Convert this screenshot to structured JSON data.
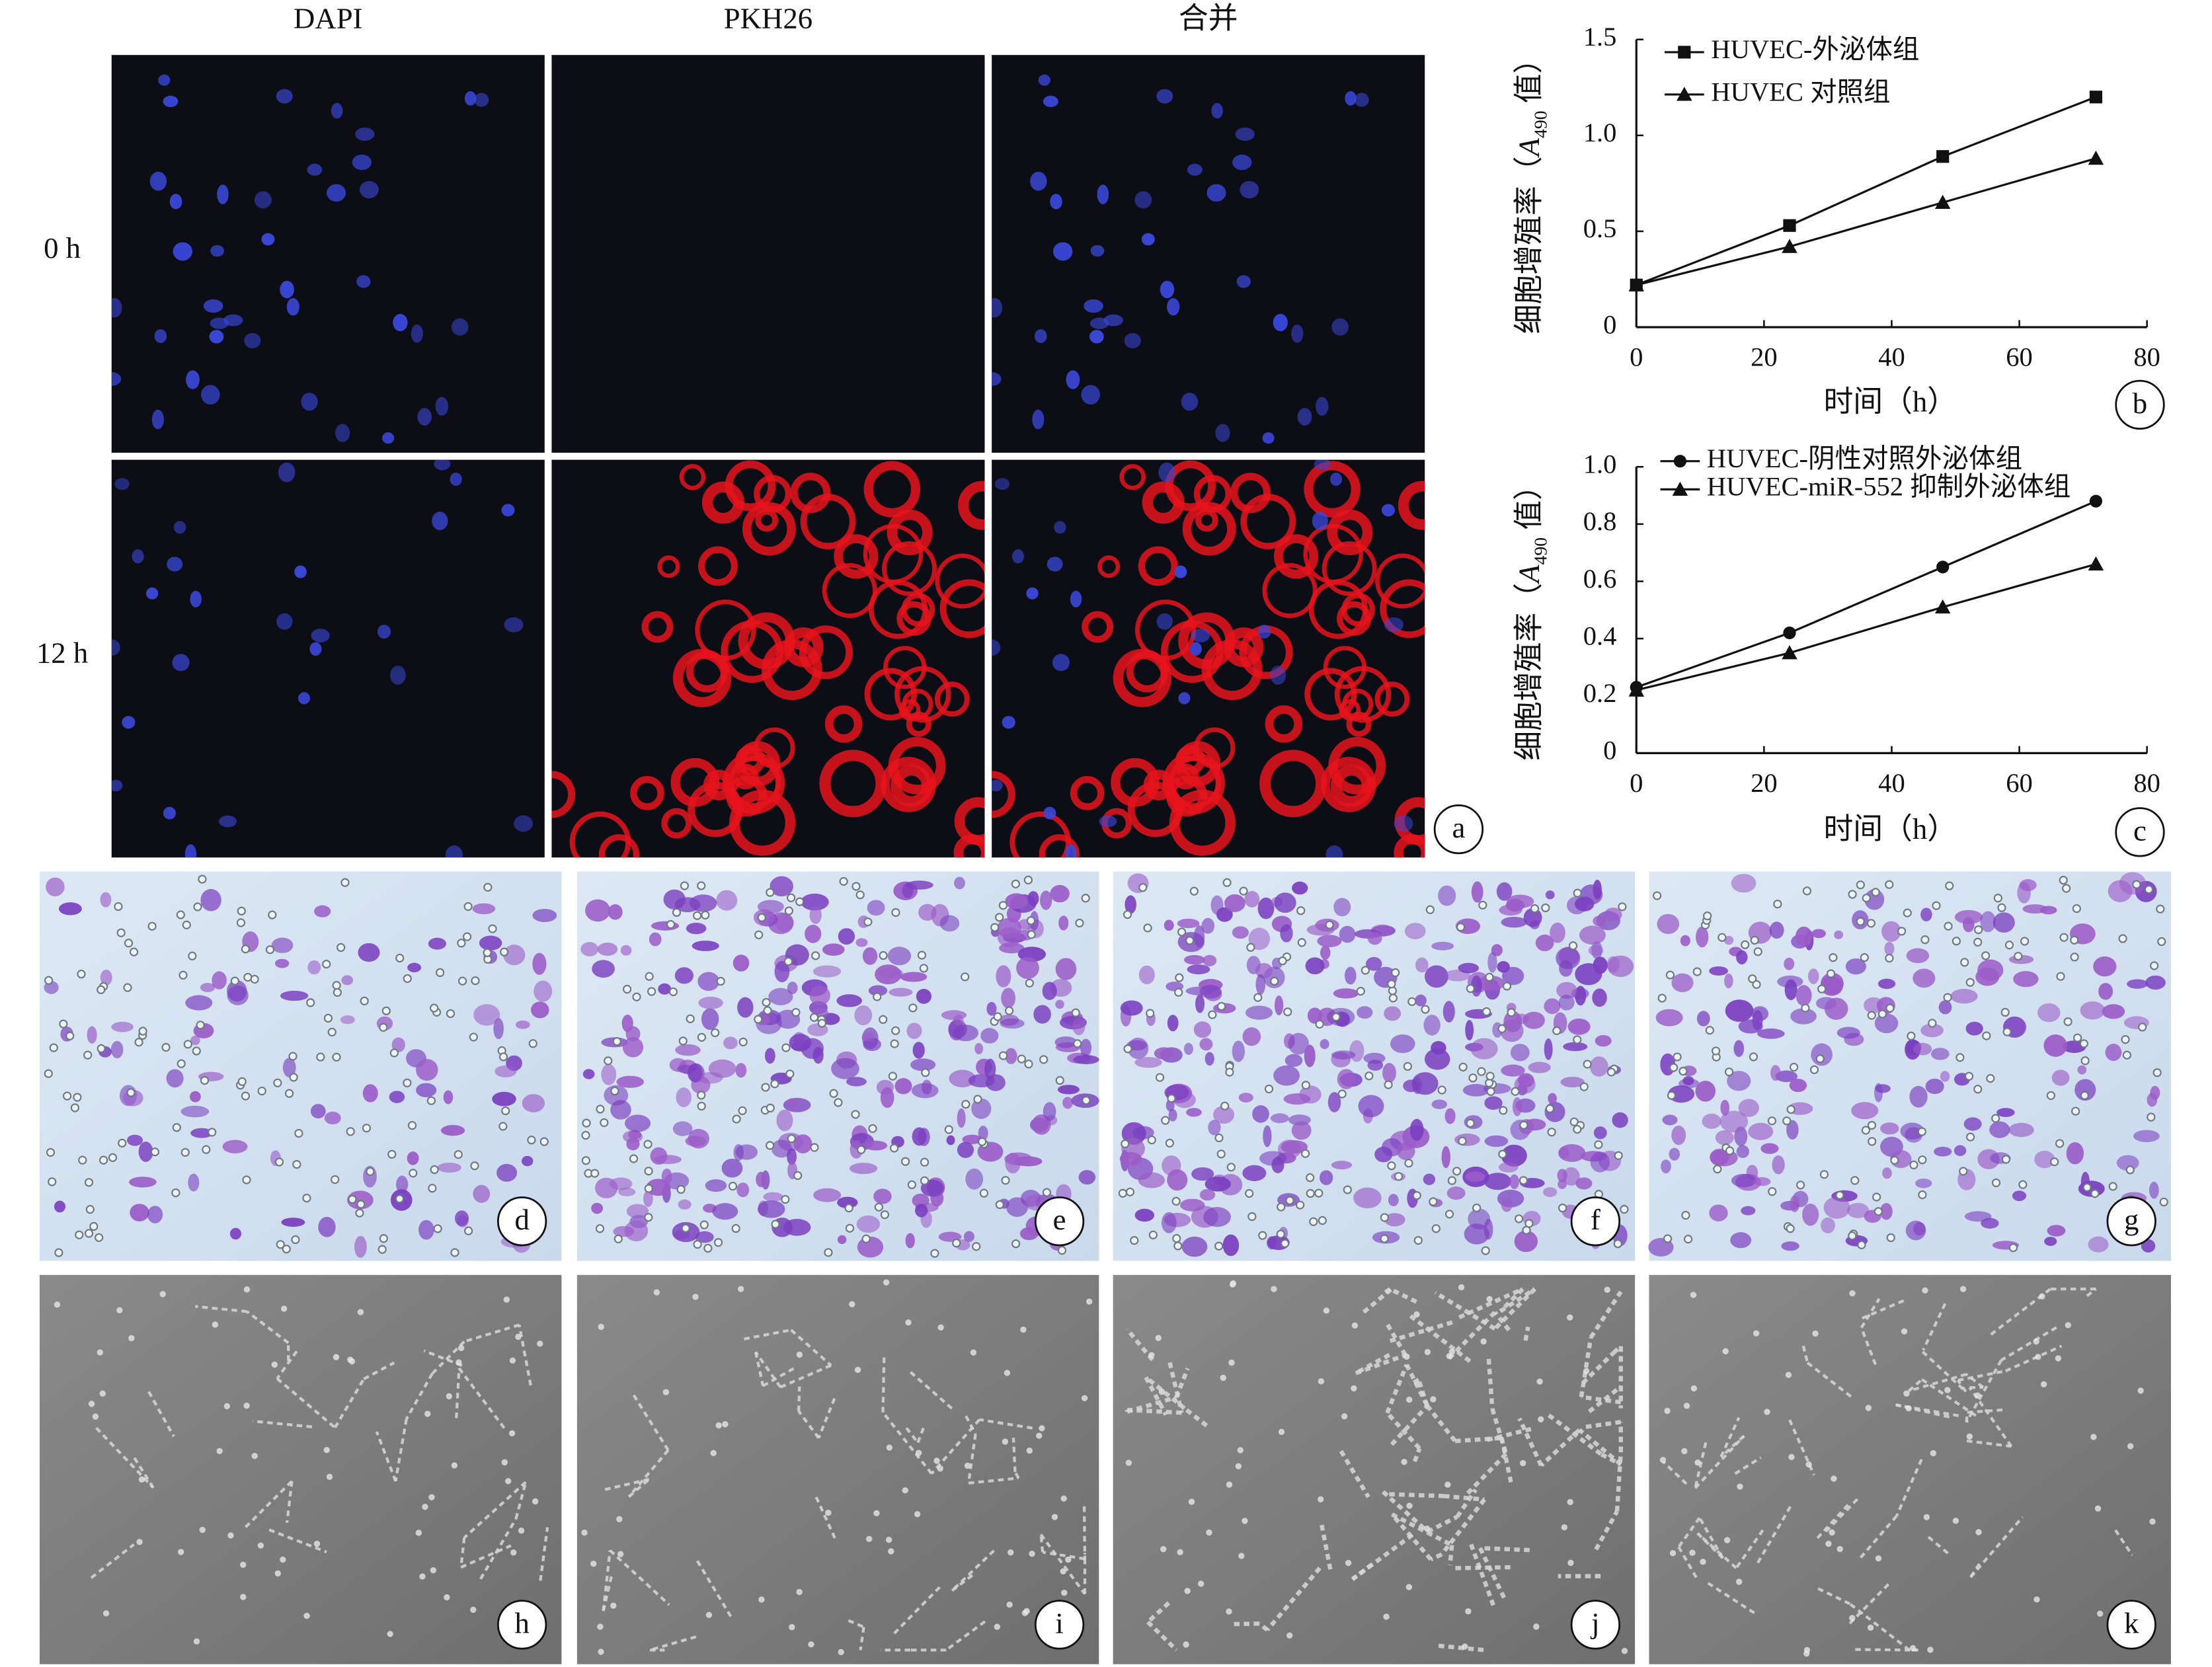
{
  "figure_a": {
    "columns": [
      "DAPI",
      "PKH26",
      "合并"
    ],
    "rows": [
      "0 h",
      "12 h"
    ],
    "label": "a"
  },
  "chart_data": [
    {
      "type": "line",
      "label": "b",
      "ylabel": [
        "细胞增殖率（",
        "A",
        "490",
        " 值）"
      ],
      "xlabel": "时间（h）",
      "x": [
        0,
        24,
        48,
        72
      ],
      "xlim": [
        0,
        80
      ],
      "xticks": [
        0,
        20,
        40,
        60,
        80
      ],
      "ylim": [
        0,
        1.5
      ],
      "yticks": [
        0,
        0.5,
        {
          "value": 1,
          "label": "1.0"
        },
        1.5
      ],
      "legend": "upper left",
      "series": [
        {
          "name": "HUVEC-外泌体组",
          "color": "#111111",
          "marker": "square",
          "values": [
            0.22,
            0.53,
            0.89,
            1.2
          ]
        },
        {
          "name": "HUVEC 对照组",
          "color": "#111111",
          "marker": "triangle",
          "values": [
            0.22,
            0.42,
            0.65,
            0.88
          ]
        }
      ]
    },
    {
      "type": "line",
      "label": "c",
      "ylabel": [
        "细胞增殖率（",
        "A",
        "490",
        " 值）"
      ],
      "xlabel": "时间（h）",
      "x": [
        0,
        24,
        48,
        72
      ],
      "xlim": [
        0,
        80
      ],
      "xticks": [
        0,
        20,
        40,
        60,
        80
      ],
      "ylim": [
        0,
        1
      ],
      "yticks": [
        0,
        0.2,
        0.4,
        0.6,
        0.8,
        {
          "value": 1,
          "label": "1.0"
        }
      ],
      "legend": "upper left",
      "series": [
        {
          "name": "HUVEC-阴性对照外泌体组",
          "color": "#111111",
          "marker": "circle",
          "values": [
            0.23,
            0.42,
            0.65,
            0.88
          ]
        },
        {
          "name": "HUVEC-miR-552 抑制外泌体组",
          "color": "#111111",
          "marker": "triangle",
          "values": [
            0.22,
            0.35,
            0.51,
            0.66
          ]
        }
      ]
    }
  ],
  "stain_labels": [
    "d",
    "e",
    "f",
    "g"
  ],
  "tube_labels": [
    "h",
    "i",
    "j",
    "k"
  ]
}
